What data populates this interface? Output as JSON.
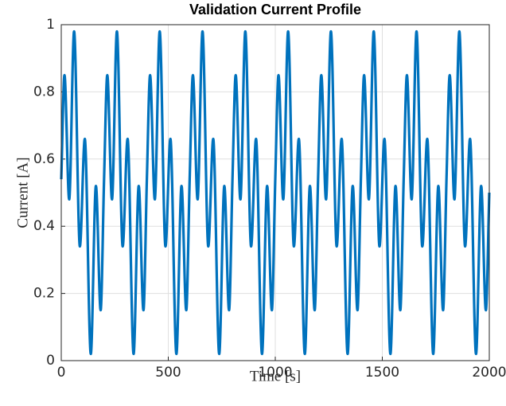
{
  "chart_data": {
    "type": "line",
    "title": "Validation Current Profile",
    "x_label": "Time [s]",
    "y_label": "Current [A]",
    "x": [
      0,
      15,
      37,
      60,
      87,
      110,
      138,
      162,
      184,
      200,
      215,
      237,
      260,
      287,
      310,
      338,
      362,
      384,
      400,
      415,
      437,
      460,
      487,
      510,
      538,
      562,
      584,
      600,
      615,
      637,
      660,
      687,
      710,
      738,
      762,
      784,
      800,
      815,
      837,
      860,
      887,
      910,
      938,
      962,
      984,
      1000,
      1015,
      1037,
      1060,
      1087,
      1110,
      1138,
      1162,
      1184,
      1200,
      1215,
      1237,
      1260,
      1287,
      1310,
      1338,
      1362,
      1384,
      1400,
      1415,
      1437,
      1460,
      1487,
      1510,
      1538,
      1562,
      1584,
      1600,
      1615,
      1637,
      1660,
      1687,
      1710,
      1738,
      1762,
      1784,
      1800,
      1815,
      1837,
      1860,
      1887,
      1910,
      1938,
      1962,
      1984,
      2000
    ],
    "series": [
      {
        "name": "Current",
        "color": "#0072bd",
        "values": [
          0.54,
          0.85,
          0.48,
          0.98,
          0.34,
          0.66,
          0.02,
          0.52,
          0.15,
          0.54,
          0.85,
          0.48,
          0.98,
          0.34,
          0.66,
          0.02,
          0.52,
          0.15,
          0.54,
          0.85,
          0.48,
          0.98,
          0.34,
          0.66,
          0.02,
          0.52,
          0.15,
          0.54,
          0.85,
          0.48,
          0.98,
          0.34,
          0.66,
          0.02,
          0.52,
          0.15,
          0.54,
          0.85,
          0.48,
          0.98,
          0.34,
          0.66,
          0.02,
          0.52,
          0.15,
          0.54,
          0.85,
          0.48,
          0.98,
          0.34,
          0.66,
          0.02,
          0.52,
          0.15,
          0.54,
          0.85,
          0.48,
          0.98,
          0.34,
          0.66,
          0.02,
          0.52,
          0.15,
          0.54,
          0.85,
          0.48,
          0.98,
          0.34,
          0.66,
          0.02,
          0.52,
          0.15,
          0.54,
          0.85,
          0.48,
          0.98,
          0.34,
          0.66,
          0.02,
          0.52,
          0.15,
          0.54,
          0.85,
          0.48,
          0.98,
          0.34,
          0.66,
          0.02,
          0.52,
          0.15,
          0.5
        ]
      }
    ],
    "xlim": [
      0,
      2000
    ],
    "xticks": [
      0,
      500,
      1000,
      1500,
      2000
    ],
    "ylim": [
      0,
      1
    ],
    "yticks": [
      0,
      0.2,
      0.4,
      0.6,
      0.8,
      1
    ],
    "grid": true
  }
}
